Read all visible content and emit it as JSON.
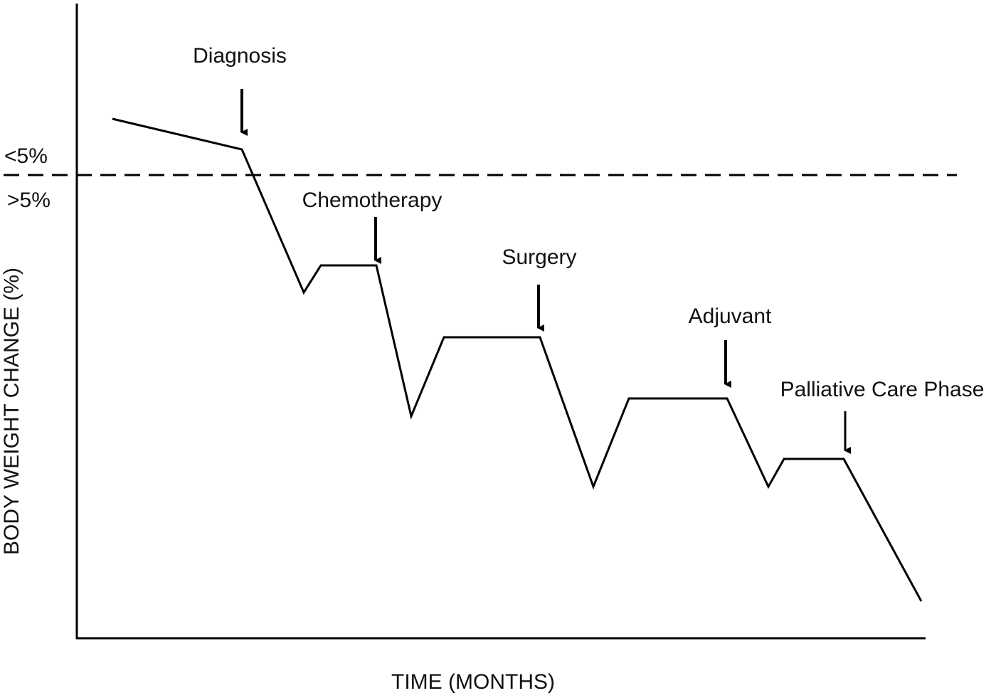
{
  "axes": {
    "y_label": "BODY WEIGHT CHANGE (%)",
    "x_label": "TIME (MONTHS)"
  },
  "threshold": {
    "above": "<5%",
    "below": ">5%"
  },
  "annotations": [
    "Diagnosis",
    "Chemotherapy",
    "Surgery",
    "Adjuvant",
    "Palliative Care Phase"
  ]
}
